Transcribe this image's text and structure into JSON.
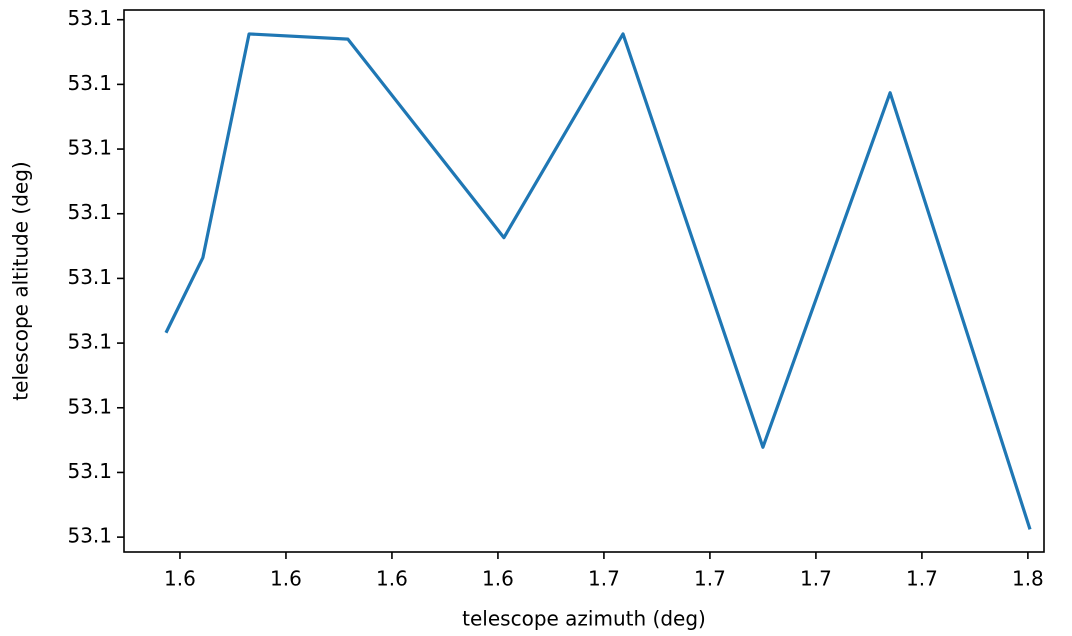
{
  "chart_data": {
    "type": "line",
    "xlabel": "telescope azimuth (deg)",
    "ylabel": "telescope altitude (deg)",
    "x": [
      1.5717,
      1.5804,
      1.5913,
      1.6146,
      1.6514,
      1.6795,
      1.7125,
      1.7425,
      1.7755
    ],
    "series": [
      {
        "name": "altitude",
        "color": "#1f77b4",
        "values": [
          53.100316,
          53.100432,
          53.100778,
          53.10077,
          53.100463,
          53.100778,
          53.100139,
          53.100687,
          53.100012
        ]
      }
    ],
    "xlim": [
      1.5618,
      1.7788
    ],
    "ylim": [
      53.099977,
      53.100815
    ],
    "xticks": [
      {
        "value": 1.575,
        "label": "1.6"
      },
      {
        "value": 1.6,
        "label": "1.6"
      },
      {
        "value": 1.625,
        "label": "1.6"
      },
      {
        "value": 1.65,
        "label": "1.6"
      },
      {
        "value": 1.675,
        "label": "1.7"
      },
      {
        "value": 1.7,
        "label": "1.7"
      },
      {
        "value": 1.725,
        "label": "1.7"
      },
      {
        "value": 1.75,
        "label": "1.7"
      },
      {
        "value": 1.775,
        "label": "1.8"
      }
    ],
    "yticks": [
      {
        "value": 53.1,
        "label": "53.1"
      },
      {
        "value": 53.1001,
        "label": "53.1"
      },
      {
        "value": 53.1002,
        "label": "53.1"
      },
      {
        "value": 53.1003,
        "label": "53.1"
      },
      {
        "value": 53.1004,
        "label": "53.1"
      },
      {
        "value": 53.1005,
        "label": "53.1"
      },
      {
        "value": 53.1006,
        "label": "53.1"
      },
      {
        "value": 53.1007,
        "label": "53.1"
      },
      {
        "value": 53.1008,
        "label": "53.1"
      }
    ]
  }
}
